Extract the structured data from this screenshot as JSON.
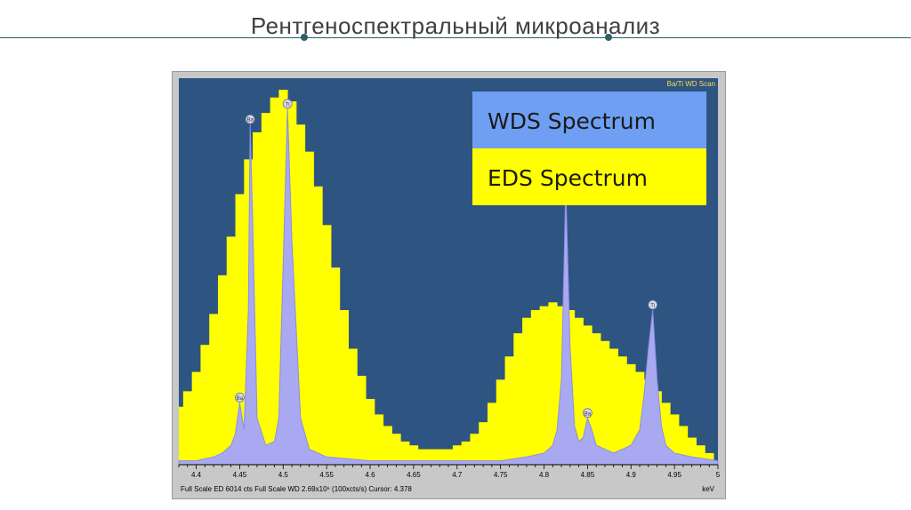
{
  "slide": {
    "title": "Рентгеноспектральный микроанализ"
  },
  "colors": {
    "plot_background": "#2e5581",
    "eds": "#ffff00",
    "wds": "#a9a9f2",
    "legend_wds_bg": "#6f9ff2",
    "legend_eds_bg": "#ffff00",
    "frame": "#c8c8c8",
    "accent_line": "#2e5e66"
  },
  "chart_data": {
    "type": "area",
    "corner_label": "Ba/Ti WD Scan",
    "xlabel": "keV",
    "status_text": "Full Scale ED 6014 cts Full Scale WD 2.69x10⁶ (100xcts/s) Cursor: 4.378",
    "xlim": [
      4.38,
      5.0
    ],
    "ylim": [
      0,
      100
    ],
    "ticks": [
      "4.4",
      "4.45",
      "4.5",
      "4.55",
      "4.6",
      "4.65",
      "4.7",
      "4.75",
      "4.8",
      "4.85",
      "4.9",
      "4.95",
      "5"
    ],
    "legend": {
      "position": "top-right",
      "entries": [
        "WDS Spectrum",
        "EDS Spectrum"
      ]
    },
    "series": [
      {
        "name": "EDS Spectrum",
        "x": [
          4.38,
          4.39,
          4.4,
          4.41,
          4.42,
          4.43,
          4.44,
          4.45,
          4.46,
          4.47,
          4.48,
          4.49,
          4.5,
          4.51,
          4.52,
          4.53,
          4.54,
          4.55,
          4.56,
          4.57,
          4.58,
          4.59,
          4.6,
          4.61,
          4.62,
          4.63,
          4.64,
          4.65,
          4.66,
          4.67,
          4.68,
          4.69,
          4.7,
          4.71,
          4.72,
          4.73,
          4.74,
          4.75,
          4.76,
          4.77,
          4.78,
          4.79,
          4.8,
          4.81,
          4.82,
          4.83,
          4.84,
          4.85,
          4.86,
          4.87,
          4.88,
          4.89,
          4.9,
          4.91,
          4.92,
          4.93,
          4.94,
          4.95,
          4.96,
          4.97,
          4.98,
          4.99,
          5.0
        ],
        "values": [
          15,
          19,
          24,
          31,
          39,
          49,
          59,
          70,
          79,
          86,
          91,
          95,
          97,
          94,
          88,
          81,
          72,
          62,
          51,
          40,
          30,
          23,
          17,
          13,
          10,
          8,
          6,
          5,
          4,
          4,
          4,
          4,
          5,
          6,
          8,
          11,
          16,
          22,
          28,
          34,
          38,
          40,
          41,
          42,
          41,
          40,
          38,
          36,
          34,
          32,
          30,
          28,
          26,
          24,
          22,
          19,
          16,
          13,
          10,
          7,
          5,
          3,
          1
        ]
      },
      {
        "name": "WDS Spectrum",
        "x": [
          4.38,
          4.4,
          4.42,
          4.43,
          4.44,
          4.445,
          4.45,
          4.455,
          4.46,
          4.462,
          4.465,
          4.47,
          4.48,
          4.49,
          4.495,
          4.5,
          4.505,
          4.51,
          4.52,
          4.53,
          4.55,
          4.6,
          4.65,
          4.7,
          4.75,
          4.78,
          4.8,
          4.81,
          4.815,
          4.82,
          4.825,
          4.83,
          4.835,
          4.84,
          4.845,
          4.85,
          4.855,
          4.86,
          4.87,
          4.88,
          4.89,
          4.9,
          4.91,
          4.915,
          4.92,
          4.925,
          4.93,
          4.935,
          4.94,
          4.95,
          4.97,
          5.0
        ],
        "values": [
          1,
          1,
          2,
          3,
          5,
          8,
          16,
          9,
          40,
          88,
          62,
          12,
          5,
          6,
          12,
          52,
          92,
          58,
          12,
          4,
          2,
          1,
          1,
          1,
          1,
          2,
          3,
          5,
          9,
          22,
          72,
          30,
          10,
          6,
          7,
          12,
          9,
          5,
          4,
          3,
          4,
          5,
          9,
          18,
          30,
          40,
          22,
          10,
          5,
          3,
          2,
          1
        ]
      }
    ],
    "peak_labels": [
      {
        "text": "Ba",
        "x": 4.462,
        "y": 88
      },
      {
        "text": "Ti",
        "x": 4.505,
        "y": 92
      },
      {
        "text": "Ba",
        "x": 4.45,
        "y": 16
      },
      {
        "text": "Ba",
        "x": 4.825,
        "y": 72
      },
      {
        "text": "Ba",
        "x": 4.85,
        "y": 12
      },
      {
        "text": "Ti",
        "x": 4.925,
        "y": 40
      }
    ]
  }
}
